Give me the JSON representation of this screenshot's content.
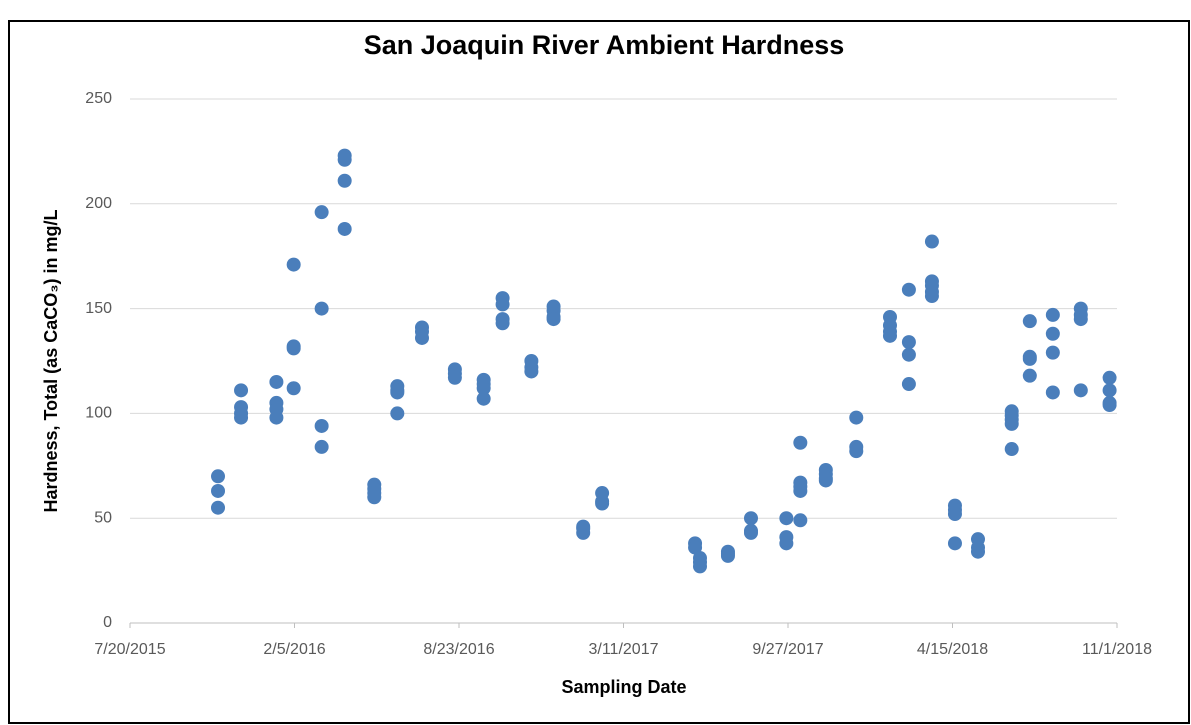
{
  "chart_data": {
    "type": "scatter",
    "title": "San Joaquin River Ambient Hardness",
    "x_label": "Sampling Date",
    "y_label": "Hardness, Total (as CaCO₃) in mg/L",
    "color": "#4a7ebb",
    "grid": true,
    "xlim": [
      42205,
      43405
    ],
    "xticks": [
      {
        "value": 42205,
        "label": "7/20/2015"
      },
      {
        "value": 42405,
        "label": "2/5/2016"
      },
      {
        "value": 42605,
        "label": "8/23/2016"
      },
      {
        "value": 42805,
        "label": "3/11/2017"
      },
      {
        "value": 43005,
        "label": "9/27/2017"
      },
      {
        "value": 43205,
        "label": "4/15/2018"
      },
      {
        "value": 43405,
        "label": "11/1/2018"
      }
    ],
    "ylim": [
      0,
      250
    ],
    "yticks": [
      0,
      50,
      100,
      150,
      200,
      250
    ],
    "x": [
      42312,
      42312,
      42312,
      42340,
      42340,
      42340,
      42340,
      42383,
      42383,
      42383,
      42383,
      42404,
      42404,
      42404,
      42404,
      42438,
      42438,
      42438,
      42438,
      42466,
      42466,
      42466,
      42466,
      42502,
      42502,
      42502,
      42502,
      42530,
      42530,
      42530,
      42530,
      42560,
      42560,
      42560,
      42600,
      42600,
      42600,
      42635,
      42635,
      42635,
      42635,
      42658,
      42658,
      42658,
      42658,
      42693,
      42693,
      42693,
      42720,
      42720,
      42720,
      42720,
      42756,
      42756,
      42756,
      42779,
      42779,
      42779,
      42892,
      42892,
      42898,
      42898,
      42898,
      42932,
      42932,
      42932,
      42960,
      42960,
      42960,
      43003,
      43003,
      43003,
      43020,
      43020,
      43020,
      43020,
      43020,
      43051,
      43051,
      43051,
      43051,
      43088,
      43088,
      43088,
      43129,
      43129,
      43129,
      43129,
      43152,
      43152,
      43152,
      43152,
      43180,
      43180,
      43180,
      43180,
      43180,
      43208,
      43208,
      43208,
      43208,
      43236,
      43236,
      43236,
      43277,
      43277,
      43277,
      43277,
      43277,
      43299,
      43299,
      43299,
      43299,
      43327,
      43327,
      43327,
      43327,
      43361,
      43361,
      43361,
      43361,
      43396,
      43396,
      43396,
      43396
    ],
    "values": [
      70,
      63,
      55,
      111,
      103,
      100,
      98,
      115,
      105,
      102,
      98,
      171,
      132,
      131,
      112,
      196,
      150,
      94,
      84,
      223,
      221,
      211,
      188,
      66,
      64,
      62,
      60,
      113,
      111,
      110,
      100,
      141,
      139,
      136,
      121,
      119,
      117,
      116,
      114,
      112,
      107,
      155,
      152,
      145,
      143,
      125,
      122,
      120,
      151,
      149,
      146,
      145,
      46,
      45,
      43,
      62,
      58,
      57,
      38,
      36,
      31,
      29,
      27,
      34,
      33,
      32,
      50,
      44,
      43,
      50,
      41,
      38,
      86,
      67,
      65,
      63,
      49,
      73,
      71,
      69,
      68,
      98,
      84,
      82,
      146,
      142,
      139,
      137,
      159,
      134,
      128,
      114,
      182,
      163,
      161,
      158,
      156,
      56,
      54,
      52,
      38,
      40,
      36,
      34,
      101,
      99,
      97,
      95,
      83,
      144,
      127,
      126,
      118,
      147,
      138,
      129,
      110,
      150,
      147,
      145,
      111,
      117,
      111,
      105,
      104
    ]
  }
}
